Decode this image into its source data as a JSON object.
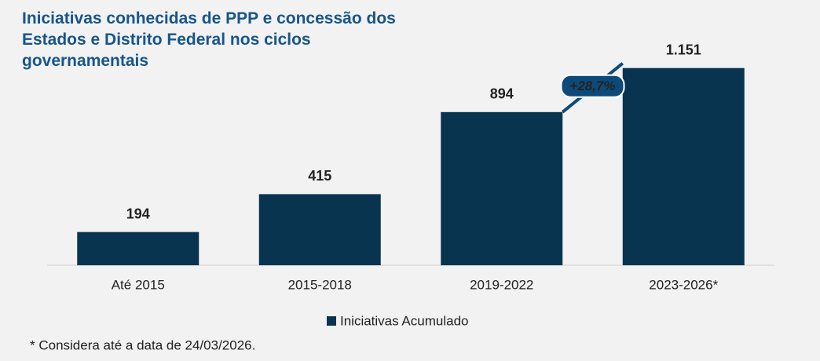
{
  "chart_data": {
    "type": "bar",
    "title": "Iniciativas conhecidas de PPP e concessão dos Estados e Distrito Federal nos ciclos governamentais",
    "categories": [
      "Até 2015",
      "2015-2018",
      "2019-2022",
      "2023-2026*"
    ],
    "series": [
      {
        "name": "Iniciativas Acumulado",
        "color": "#08344f",
        "values": [
          194,
          415,
          894,
          1151
        ],
        "value_labels": [
          "194",
          "415",
          "894",
          "1.151"
        ]
      }
    ],
    "ylim": [
      0,
      1200
    ],
    "annotation": "+28,7%",
    "footnote": "* Considera até a data de 24/03/2026.",
    "legend": "bottom"
  }
}
